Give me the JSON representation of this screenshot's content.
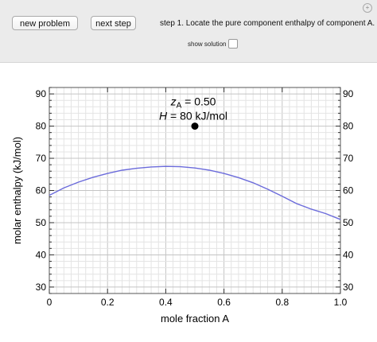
{
  "controls": {
    "new_problem_label": "new problem",
    "next_step_label": "next step",
    "step_text": "step 1. Locate the pure component enthalpy of component A.",
    "show_solution_label": "show solution",
    "show_solution_checked": false
  },
  "chart_data": {
    "type": "line",
    "xlabel": "mole fraction A",
    "ylabel": "molar enthalpy (kJ/mol)",
    "xlim": [
      0,
      1
    ],
    "ylim": [
      28,
      92
    ],
    "x_ticks": [
      "0",
      "0.2",
      "0.4",
      "0.6",
      "0.8",
      "1.0"
    ],
    "y_ticks": [
      "30",
      "40",
      "50",
      "60",
      "70",
      "80",
      "90"
    ],
    "grid": true,
    "series": [
      {
        "color": "#6b6bdb",
        "x": [
          0,
          0.05,
          0.1,
          0.15,
          0.2,
          0.25,
          0.3,
          0.35,
          0.4,
          0.45,
          0.5,
          0.55,
          0.6,
          0.65,
          0.7,
          0.75,
          0.8,
          0.85,
          0.9,
          0.95,
          1.0
        ],
        "y": [
          58.5,
          60.8,
          62.6,
          64.1,
          65.3,
          66.3,
          66.9,
          67.3,
          67.5,
          67.4,
          67.0,
          66.3,
          65.3,
          64.0,
          62.4,
          60.4,
          58.2,
          55.9,
          54.2,
          52.8,
          51.0
        ]
      }
    ],
    "point": {
      "x": 0.5,
      "y": 80,
      "color": "#000000"
    },
    "annotation": {
      "line1_var": "z",
      "line1_sub": "A",
      "line1_rest": " = 0.50",
      "line2_var": "H",
      "line2_rest": " = 80 kJ/mol"
    }
  }
}
